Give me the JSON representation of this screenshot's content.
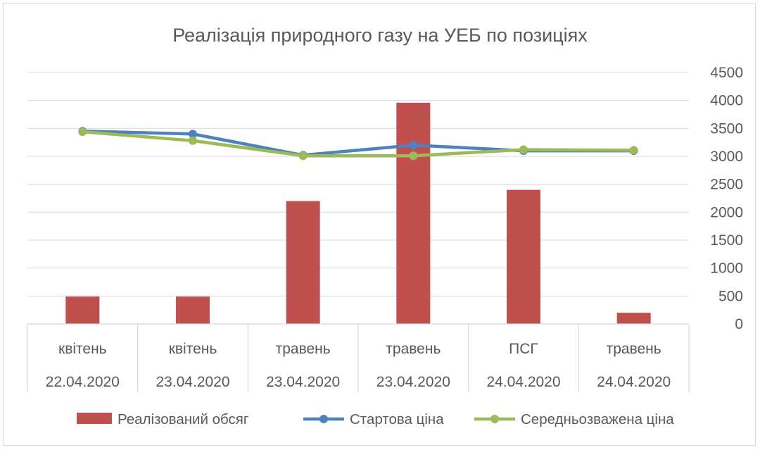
{
  "chart_data": {
    "type": "bar",
    "title": "Реалізація природного газу на УЕБ по позиціях",
    "categories": [
      {
        "top": "квітень",
        "bottom": "22.04.2020"
      },
      {
        "top": "квітень",
        "bottom": "23.04.2020"
      },
      {
        "top": "травень",
        "bottom": "23.04.2020"
      },
      {
        "top": "травень",
        "bottom": "23.04.2020"
      },
      {
        "top": "ПСГ",
        "bottom": "24.04.2020"
      },
      {
        "top": "травень",
        "bottom": "24.04.2020"
      }
    ],
    "series": [
      {
        "name": "Реалізований обсяг",
        "kind": "bar",
        "color": "#c0504d",
        "values": [
          490,
          490,
          2200,
          3960,
          2400,
          200
        ]
      },
      {
        "name": "Стартова ціна",
        "kind": "line",
        "color": "#4f81bd",
        "values": [
          3450,
          3400,
          3020,
          3200,
          3100,
          3100
        ]
      },
      {
        "name": "Середньозважена ціна",
        "kind": "line",
        "color": "#9bbb59",
        "values": [
          3440,
          3280,
          3010,
          3010,
          3120,
          3110
        ]
      }
    ],
    "yaxis": {
      "position": "right",
      "min": 0,
      "max": 4500,
      "step": 500,
      "ticks": [
        "0",
        "500",
        "1000",
        "1500",
        "2000",
        "2500",
        "3000",
        "3500",
        "4000",
        "4500"
      ]
    },
    "grid": true,
    "legend": "bottom"
  }
}
